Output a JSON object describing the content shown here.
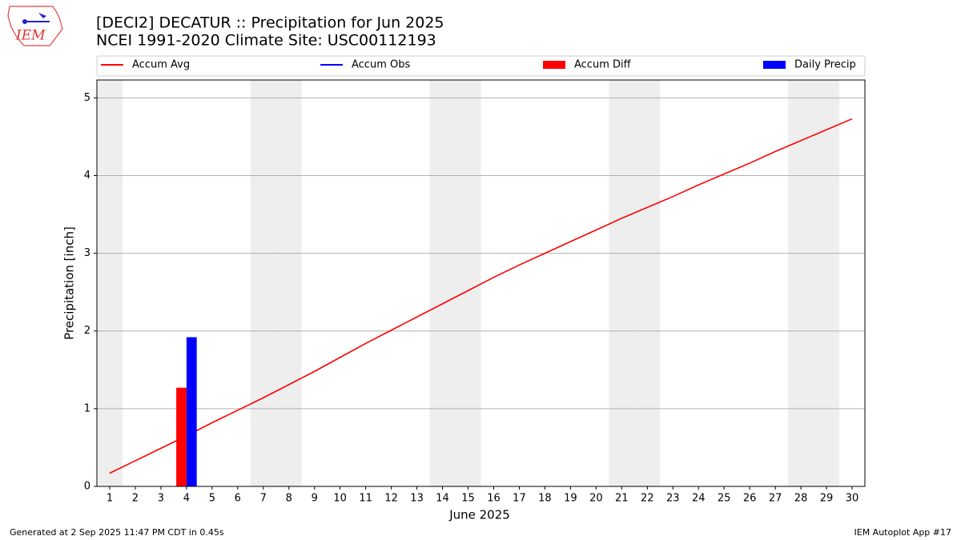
{
  "chart_data": {
    "type": "line",
    "title": "[DECI2] DECATUR :: Precipitation for Jun 2025",
    "subtitle": "NCEI 1991-2020 Climate Site: USC00112193",
    "xlabel": "June 2025",
    "ylabel": "Precipitation [inch]",
    "x": [
      1,
      2,
      3,
      4,
      5,
      6,
      7,
      8,
      9,
      10,
      11,
      12,
      13,
      14,
      15,
      16,
      17,
      18,
      19,
      20,
      21,
      22,
      23,
      24,
      25,
      26,
      27,
      28,
      29,
      30
    ],
    "xlim": [
      0.5,
      30.5
    ],
    "xticks": [
      1,
      2,
      3,
      4,
      5,
      6,
      7,
      8,
      9,
      10,
      11,
      12,
      13,
      14,
      15,
      16,
      17,
      18,
      19,
      20,
      21,
      22,
      23,
      24,
      25,
      26,
      27,
      28,
      29,
      30
    ],
    "ylim": [
      0,
      5.23
    ],
    "yticks": [
      0,
      1,
      2,
      3,
      4,
      5
    ],
    "grid": true,
    "shaded_days": [
      1,
      7,
      8,
      14,
      15,
      21,
      22,
      28,
      29
    ],
    "series": [
      {
        "name": "Accum Avg",
        "kind": "line",
        "color": "#ff0000",
        "values": [
          0.17,
          0.33,
          0.49,
          0.65,
          0.82,
          0.98,
          1.14,
          1.31,
          1.48,
          1.66,
          1.84,
          2.01,
          2.18,
          2.35,
          2.52,
          2.69,
          2.85,
          3.0,
          3.15,
          3.3,
          3.45,
          3.59,
          3.73,
          3.88,
          4.02,
          4.16,
          4.31,
          4.45,
          4.59,
          4.73
        ]
      },
      {
        "name": "Accum Obs",
        "kind": "line",
        "color": "#0000ff",
        "values": [
          null,
          null,
          null,
          1.92,
          null,
          null,
          null,
          null,
          null,
          null,
          null,
          null,
          null,
          null,
          null,
          null,
          null,
          null,
          null,
          null,
          null,
          null,
          null,
          null,
          null,
          null,
          null,
          null,
          null,
          null
        ]
      },
      {
        "name": "Accum Diff",
        "kind": "bar",
        "color": "#ff0000",
        "values": [
          null,
          null,
          null,
          1.27,
          null,
          null,
          null,
          null,
          null,
          null,
          null,
          null,
          null,
          null,
          null,
          null,
          null,
          null,
          null,
          null,
          null,
          null,
          null,
          null,
          null,
          null,
          null,
          null,
          null,
          null
        ]
      },
      {
        "name": "Daily Precip",
        "kind": "bar",
        "color": "#0000ff",
        "values": [
          null,
          null,
          null,
          1.92,
          null,
          null,
          null,
          null,
          null,
          null,
          null,
          null,
          null,
          null,
          null,
          null,
          null,
          null,
          null,
          null,
          null,
          null,
          null,
          null,
          null,
          null,
          null,
          null,
          null,
          null
        ]
      }
    ]
  },
  "logo_text": "IEM",
  "footer_left": "Generated at 2 Sep 2025 11:47 PM CDT in 0.45s",
  "footer_right": "IEM Autoplot App #17"
}
